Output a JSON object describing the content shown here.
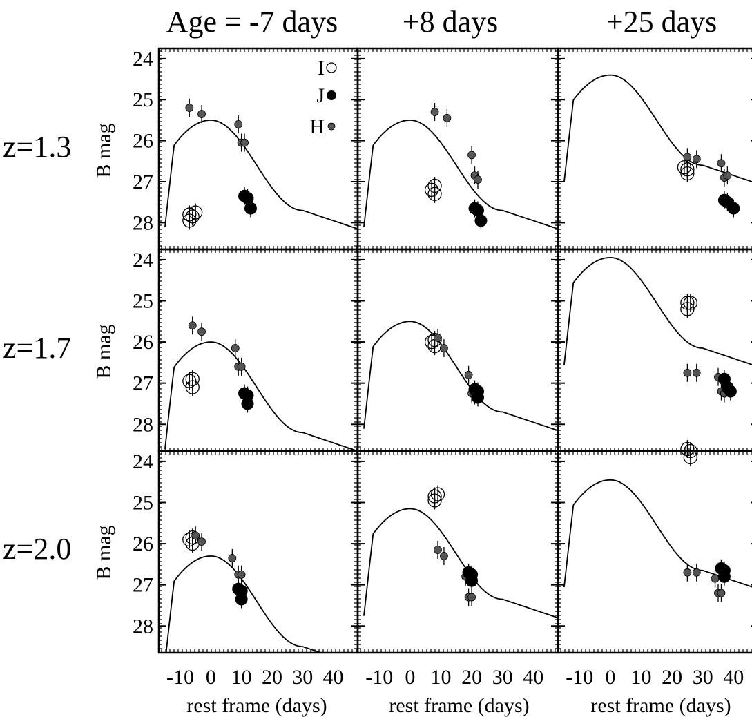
{
  "chart_data": {
    "type": "scatter",
    "grid_layout": "3x3 small multiples",
    "column_titles": [
      "Age = -7 days",
      "+8 days",
      "+25 days"
    ],
    "row_labels": [
      "z=1.3",
      "z=1.7",
      "z=2.0"
    ],
    "ylabel": "B mag",
    "xlabel": "rest frame (days)",
    "y_reversed": true,
    "ylim": [
      28.65,
      23.75
    ],
    "xlim": [
      -17,
      48
    ],
    "yticks": [
      "24",
      "25",
      "26",
      "27",
      "28"
    ],
    "xticks": [
      "-10",
      "0",
      "10",
      "20",
      "30",
      "40"
    ],
    "legend": {
      "position": "top-right of first panel",
      "entries": [
        {
          "label": "I",
          "marker": "open-circle"
        },
        {
          "label": "J",
          "marker": "filled-circle"
        },
        {
          "label": "H",
          "marker": "gray-dot"
        }
      ]
    },
    "panels": [
      {
        "row": 0,
        "col": 0,
        "peak": 25.5,
        "I": [
          [
            -7,
            27.8
          ],
          [
            -6,
            27.85
          ],
          [
            -7,
            27.95
          ],
          [
            -5,
            27.75
          ]
        ],
        "J": [
          [
            11,
            27.35
          ],
          [
            12,
            27.4
          ],
          [
            13,
            27.65
          ]
        ],
        "H": [
          [
            -7,
            25.2
          ],
          [
            -3,
            25.35
          ],
          [
            9,
            25.6
          ],
          [
            10,
            26.05
          ],
          [
            11,
            26.05
          ]
        ]
      },
      {
        "row": 0,
        "col": 1,
        "peak": 25.5,
        "I": [
          [
            7,
            27.2
          ],
          [
            8,
            27.1
          ],
          [
            8,
            27.3
          ]
        ],
        "J": [
          [
            21,
            27.65
          ],
          [
            22,
            27.7
          ],
          [
            23,
            27.95
          ]
        ],
        "H": [
          [
            8,
            25.3
          ],
          [
            12,
            25.45
          ],
          [
            20,
            26.35
          ],
          [
            21,
            26.85
          ],
          [
            22,
            26.95
          ]
        ]
      },
      {
        "row": 0,
        "col": 2,
        "peak": 24.4,
        "I": [
          [
            24,
            26.65
          ],
          [
            25,
            26.7
          ],
          [
            25,
            26.8
          ]
        ],
        "J": [
          [
            37,
            27.45
          ],
          [
            38,
            27.5
          ],
          [
            40,
            27.65
          ]
        ],
        "H": [
          [
            25,
            26.4
          ],
          [
            28,
            26.45
          ],
          [
            36,
            26.55
          ],
          [
            37,
            26.9
          ],
          [
            38,
            26.85
          ]
        ]
      },
      {
        "row": 1,
        "col": 0,
        "peak": 26.0,
        "I": [
          [
            -7,
            26.95
          ],
          [
            -6,
            26.9
          ],
          [
            -6,
            27.1
          ]
        ],
        "J": [
          [
            11,
            27.25
          ],
          [
            12,
            27.3
          ],
          [
            12,
            27.5
          ]
        ],
        "H": [
          [
            -6,
            25.6
          ],
          [
            -3,
            25.75
          ],
          [
            8,
            26.15
          ],
          [
            9,
            26.6
          ],
          [
            10,
            26.6
          ]
        ]
      },
      {
        "row": 1,
        "col": 1,
        "peak": 25.5,
        "I": [
          [
            7,
            26.0
          ],
          [
            8,
            25.95
          ],
          [
            8,
            26.1
          ]
        ],
        "J": [
          [
            21,
            27.15
          ],
          [
            22,
            27.2
          ],
          [
            22,
            27.35
          ]
        ],
        "H": [
          [
            9,
            25.9
          ],
          [
            11,
            26.15
          ],
          [
            19,
            26.8
          ],
          [
            20,
            27.25
          ],
          [
            21,
            27.3
          ]
        ]
      },
      {
        "row": 1,
        "col": 2,
        "peak": 23.95,
        "I": [
          [
            25,
            25.05
          ],
          [
            26,
            25.05
          ],
          [
            25,
            25.2
          ]
        ],
        "J": [
          [
            37,
            26.9
          ],
          [
            38,
            27.1
          ],
          [
            39,
            27.2
          ]
        ],
        "H": [
          [
            25,
            26.75
          ],
          [
            28,
            26.75
          ],
          [
            35,
            26.85
          ],
          [
            36,
            27.2
          ],
          [
            37,
            27.25
          ]
        ]
      },
      {
        "row": 2,
        "col": 0,
        "peak": 26.3,
        "I": [
          [
            -7,
            25.9
          ],
          [
            -6,
            25.85
          ],
          [
            -6,
            26.0
          ]
        ],
        "J": [
          [
            9,
            27.1
          ],
          [
            10,
            27.15
          ],
          [
            10,
            27.35
          ]
        ],
        "H": [
          [
            -5,
            25.8
          ],
          [
            -3,
            25.95
          ],
          [
            7,
            26.35
          ],
          [
            9,
            26.75
          ],
          [
            10,
            26.75
          ]
        ]
      },
      {
        "row": 2,
        "col": 1,
        "peak": 25.15,
        "I": [
          [
            8,
            24.85
          ],
          [
            8,
            24.95
          ],
          [
            9,
            24.8
          ]
        ],
        "J": [
          [
            19,
            26.7
          ],
          [
            20,
            26.75
          ],
          [
            20,
            26.9
          ]
        ],
        "H": [
          [
            9,
            26.15
          ],
          [
            11,
            26.3
          ],
          [
            18,
            26.8
          ],
          [
            19,
            27.3
          ],
          [
            20,
            27.3
          ]
        ]
      },
      {
        "row": 2,
        "col": 2,
        "peak": 24.45,
        "I": [
          [
            25,
            23.7
          ],
          [
            26,
            23.75
          ],
          [
            26,
            23.9
          ]
        ],
        "J": [
          [
            36,
            26.6
          ],
          [
            37,
            26.65
          ],
          [
            37,
            26.8
          ]
        ],
        "H": [
          [
            25,
            26.7
          ],
          [
            28,
            26.7
          ],
          [
            34,
            26.85
          ],
          [
            35,
            27.2
          ],
          [
            36,
            27.2
          ]
        ]
      }
    ]
  }
}
